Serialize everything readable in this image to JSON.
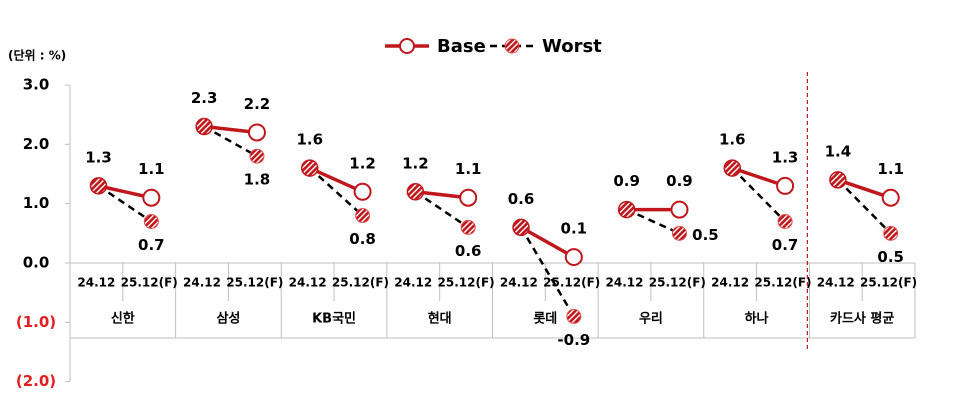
{
  "chart_data": {
    "type": "line",
    "unit_label": "(단위 : %)",
    "ylim": [
      -2.0,
      3.0
    ],
    "yticks": [
      {
        "value": 3.0,
        "label": "3.0",
        "color": "#000000"
      },
      {
        "value": 2.0,
        "label": "2.0",
        "color": "#000000"
      },
      {
        "value": 1.0,
        "label": "1.0",
        "color": "#000000"
      },
      {
        "value": 0.0,
        "label": "0.0",
        "color": "#000000"
      },
      {
        "value": -1.0,
        "label": "(1.0)",
        "color": "#e02020"
      },
      {
        "value": -2.0,
        "label": "(2.0)",
        "color": "#e02020"
      }
    ],
    "x_period_labels": [
      "24.12",
      "25.12(F)"
    ],
    "groups": [
      {
        "name": "신한",
        "base": [
          1.3,
          1.1
        ],
        "worst": [
          1.3,
          0.7
        ]
      },
      {
        "name": "삼성",
        "base": [
          2.3,
          2.2
        ],
        "worst": [
          2.3,
          1.8
        ]
      },
      {
        "name": "KB국민",
        "base": [
          1.6,
          1.2
        ],
        "worst": [
          1.6,
          0.8
        ]
      },
      {
        "name": "현대",
        "base": [
          1.2,
          1.1
        ],
        "worst": [
          1.2,
          0.6
        ]
      },
      {
        "name": "롯데",
        "base": [
          0.6,
          0.1
        ],
        "worst": [
          0.6,
          -0.9
        ]
      },
      {
        "name": "우리",
        "base": [
          0.9,
          0.9
        ],
        "worst": [
          0.9,
          0.5
        ]
      },
      {
        "name": "하나",
        "base": [
          1.6,
          1.3
        ],
        "worst": [
          1.6,
          0.7
        ]
      },
      {
        "name": "카드사 평균",
        "base": [
          1.4,
          1.1
        ],
        "worst": [
          1.4,
          0.5
        ]
      }
    ],
    "series": [
      {
        "name": "Base",
        "color": "#c0171c",
        "style": "solid",
        "marker": "hollow-circle"
      },
      {
        "name": "Worst",
        "color": "#000000",
        "style": "dashed",
        "marker": "hatched-red-circle"
      }
    ],
    "legend_position": "top-center",
    "separator_before_group": "카드사 평균",
    "separator_color": "#c0171c"
  }
}
